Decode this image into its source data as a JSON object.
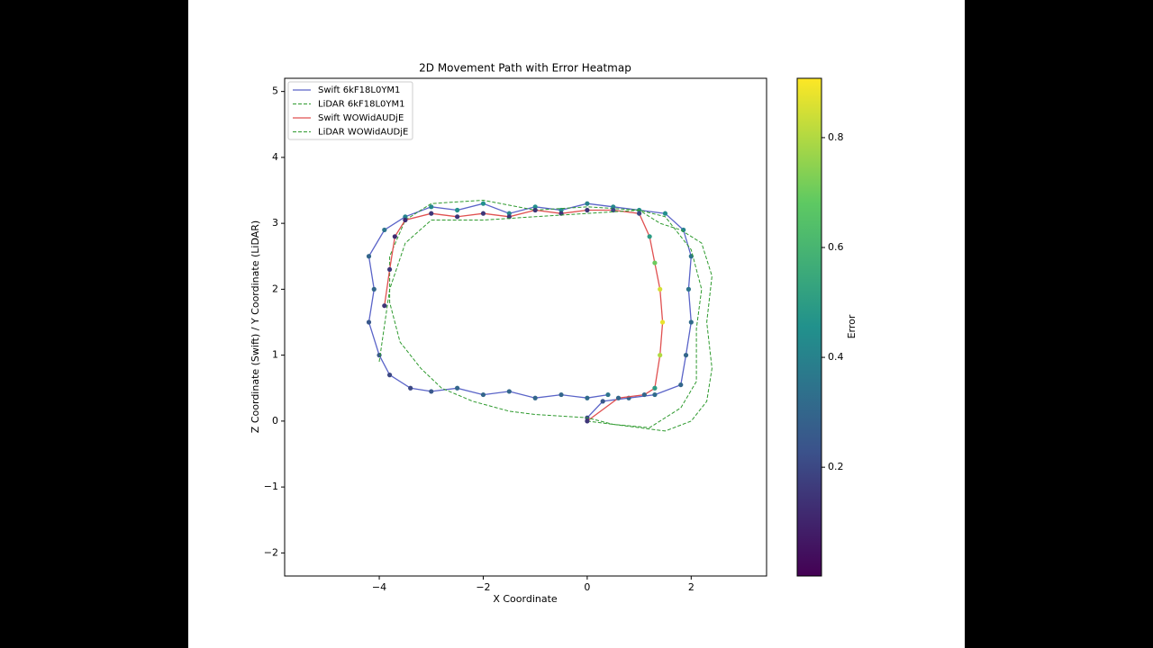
{
  "chart_data": {
    "type": "line",
    "title": "2D Movement Path with Error Heatmap",
    "xlabel": "X Coordinate",
    "ylabel": "Z Coordinate (Swift) / Y Coordinate (LiDAR)",
    "xlim": [
      -5.82,
      3.45
    ],
    "ylim": [
      -2.35,
      5.2
    ],
    "xticks": [
      {
        "value": -4,
        "label": "−4"
      },
      {
        "value": -2,
        "label": "−2"
      },
      0,
      2
    ],
    "yticks": [
      {
        "value": -2,
        "label": "−2"
      },
      {
        "value": -1,
        "label": "−1"
      },
      0,
      1,
      2,
      3,
      4,
      5
    ],
    "legend": "upper left",
    "series": [
      {
        "name": "Swift 6kF18L0YM1",
        "color": "#5a64c8",
        "dashed": false,
        "x": [
          0,
          0.3,
          0.8,
          1.3,
          1.8,
          1.9,
          2.0,
          1.95,
          2.0,
          1.85,
          1.5,
          1.0,
          0.5,
          0.0,
          -0.5,
          -1.0,
          -1.5,
          -2.0,
          -2.5,
          -3.0,
          -3.5,
          -3.9,
          -4.2,
          -4.1,
          -4.2,
          -4.0,
          -3.8,
          -3.4,
          -3.0,
          -2.5,
          -2.0,
          -1.5,
          -1.0,
          -0.5,
          0.0,
          0.4
        ],
        "y": [
          0.05,
          0.3,
          0.35,
          0.4,
          0.55,
          1.0,
          1.5,
          2.0,
          2.5,
          2.9,
          3.15,
          3.2,
          3.25,
          3.3,
          3.2,
          3.25,
          3.15,
          3.3,
          3.2,
          3.25,
          3.1,
          2.9,
          2.5,
          2.0,
          1.5,
          1.0,
          0.7,
          0.5,
          0.45,
          0.5,
          0.4,
          0.45,
          0.35,
          0.4,
          0.35,
          0.4
        ],
        "error": [
          0.2,
          0.25,
          0.3,
          0.32,
          0.3,
          0.3,
          0.32,
          0.35,
          0.35,
          0.4,
          0.45,
          0.45,
          0.42,
          0.4,
          0.45,
          0.45,
          0.42,
          0.45,
          0.45,
          0.42,
          0.4,
          0.35,
          0.3,
          0.3,
          0.25,
          0.25,
          0.2,
          0.2,
          0.25,
          0.3,
          0.3,
          0.3,
          0.3,
          0.3,
          0.32,
          0.35
        ]
      },
      {
        "name": "LiDAR 6kF18L0YM1",
        "color": "#2e9a2e",
        "dashed": true,
        "x": [
          0,
          0.5,
          1.0,
          1.5,
          2.0,
          2.3,
          2.4,
          2.3,
          2.4,
          2.2,
          1.8,
          1.4,
          1.0,
          0.0,
          -1.0,
          -2.0,
          -3.0,
          -3.5,
          -3.8,
          -3.8,
          -3.6,
          -3.2,
          -2.8,
          -2.2,
          -1.5,
          -1.0,
          0.0
        ],
        "y": [
          0.0,
          -0.05,
          -0.1,
          -0.15,
          0.0,
          0.3,
          0.8,
          1.5,
          2.2,
          2.7,
          2.9,
          3.0,
          3.2,
          3.25,
          3.2,
          3.35,
          3.3,
          3.05,
          2.5,
          1.8,
          1.2,
          0.8,
          0.5,
          0.3,
          0.15,
          0.1,
          0.05
        ]
      },
      {
        "name": "Swift WOWidAUDjE",
        "color": "#e05050",
        "dashed": false,
        "x": [
          -3.9,
          -3.8,
          -3.7,
          -3.5,
          -3.0,
          -2.5,
          -2.0,
          -1.5,
          -1.0,
          -0.5,
          0.0,
          0.5,
          1.0,
          1.2,
          1.3,
          1.4,
          1.45,
          1.4,
          1.3,
          1.1,
          0.6,
          0.0
        ],
        "y": [
          1.75,
          2.3,
          2.8,
          3.05,
          3.15,
          3.1,
          3.15,
          3.1,
          3.2,
          3.15,
          3.2,
          3.2,
          3.15,
          2.8,
          2.4,
          2.0,
          1.5,
          1.0,
          0.5,
          0.4,
          0.35,
          0.0
        ],
        "error": [
          0.15,
          0.15,
          0.12,
          0.12,
          0.15,
          0.15,
          0.15,
          0.15,
          0.15,
          0.15,
          0.15,
          0.2,
          0.2,
          0.5,
          0.7,
          0.85,
          0.88,
          0.8,
          0.5,
          0.3,
          0.3,
          0.15
        ]
      },
      {
        "name": "LiDAR WOWidAUDjE",
        "color": "#2e9a2e",
        "dashed": true,
        "x": [
          -4.0,
          -3.8,
          -3.5,
          -3.0,
          -2.0,
          -1.0,
          0.0,
          1.0,
          1.5,
          2.0,
          2.2,
          2.1,
          2.1,
          1.8,
          1.2,
          0.5,
          0.0
        ],
        "y": [
          0.9,
          2.0,
          2.7,
          3.05,
          3.05,
          3.1,
          3.15,
          3.2,
          3.1,
          2.6,
          2.0,
          1.4,
          0.6,
          0.2,
          -0.1,
          -0.05,
          0.05
        ]
      }
    ],
    "colorbar": {
      "label": "Error",
      "colormap": "viridis",
      "lim": [
        0.002,
        0.908
      ],
      "ticks": [
        0.2,
        0.4,
        0.6,
        0.8
      ]
    }
  }
}
